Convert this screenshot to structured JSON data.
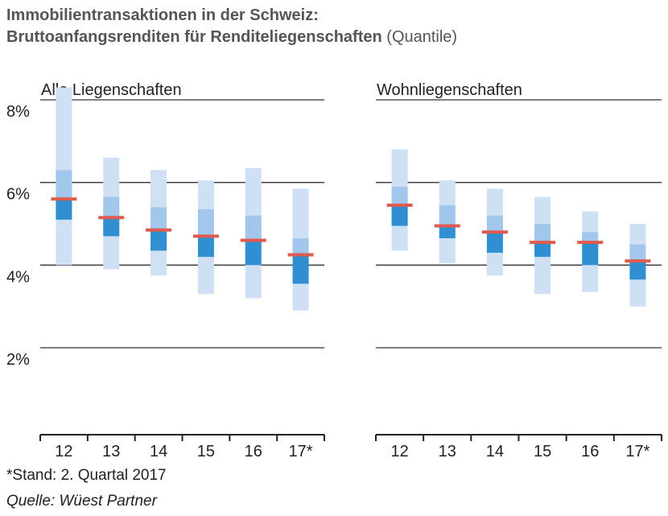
{
  "title": {
    "line1": "Immobilientransaktionen in der Schweiz:",
    "line2_bold": "Bruttoanfangsrenditen für Renditeliegenschaften",
    "line2_normal": "(Quantile)"
  },
  "footer": {
    "note": "*Stand: 2. Quartal 2017",
    "source": "Quelle: Wüest Partner"
  },
  "colors": {
    "outer_band": "#cfe0f4",
    "inner_band_upper": "#a3c6ec",
    "inner_band_lower": "#2f8fd0",
    "median": "#e05a4e",
    "gridline": "#333333"
  },
  "chart_data": {
    "type": "box",
    "y_ticks": [
      "8%",
      "6%",
      "4%",
      "2%"
    ],
    "y_tick_values": [
      8,
      6,
      4,
      2
    ],
    "ylim": [
      0,
      8
    ],
    "panels": [
      {
        "title": "Alle Liegenschaften",
        "categories": [
          "12",
          "13",
          "14",
          "15",
          "16",
          "17*"
        ],
        "series": [
          {
            "x": "12",
            "min": 4.0,
            "q1": 5.1,
            "median": 5.6,
            "q3": 6.3,
            "max": 8.3
          },
          {
            "x": "13",
            "min": 3.9,
            "q1": 4.7,
            "median": 5.15,
            "q3": 5.65,
            "max": 6.6
          },
          {
            "x": "14",
            "min": 3.75,
            "q1": 4.35,
            "median": 4.85,
            "q3": 5.4,
            "max": 6.3
          },
          {
            "x": "15",
            "min": 3.3,
            "q1": 4.2,
            "median": 4.7,
            "q3": 5.35,
            "max": 6.05
          },
          {
            "x": "16",
            "min": 3.2,
            "q1": 4.0,
            "median": 4.6,
            "q3": 5.2,
            "max": 6.35
          },
          {
            "x": "17*",
            "min": 2.9,
            "q1": 3.55,
            "median": 4.25,
            "q3": 4.65,
            "max": 5.85
          }
        ]
      },
      {
        "title": "Wohnliegenschaften",
        "categories": [
          "12",
          "13",
          "14",
          "15",
          "16",
          "17*"
        ],
        "series": [
          {
            "x": "12",
            "min": 4.35,
            "q1": 4.95,
            "median": 5.45,
            "q3": 5.9,
            "max": 6.8
          },
          {
            "x": "13",
            "min": 4.05,
            "q1": 4.65,
            "median": 4.95,
            "q3": 5.45,
            "max": 6.05
          },
          {
            "x": "14",
            "min": 3.75,
            "q1": 4.3,
            "median": 4.8,
            "q3": 5.2,
            "max": 5.85
          },
          {
            "x": "15",
            "min": 3.3,
            "q1": 4.2,
            "median": 4.55,
            "q3": 5.0,
            "max": 5.65
          },
          {
            "x": "16",
            "min": 3.35,
            "q1": 4.0,
            "median": 4.55,
            "q3": 4.8,
            "max": 5.3
          },
          {
            "x": "17*",
            "min": 3.0,
            "q1": 3.65,
            "median": 4.1,
            "q3": 4.5,
            "max": 5.0
          }
        ]
      }
    ]
  }
}
